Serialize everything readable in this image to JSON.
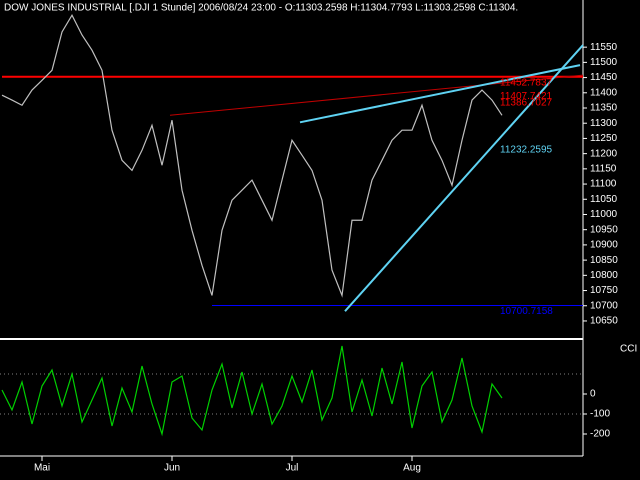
{
  "chart_data": [
    {
      "type": "line",
      "title": "DOW JONES INDUSTRIAL [.DJI  1 Stunde] 2006/08/24 23:00 - O:11303.2598 H:11304.7793 L:11303.2598 C:11304.",
      "categories": [
        null,
        null,
        null,
        null,
        "Mai",
        null,
        null,
        null,
        null,
        null,
        null,
        null,
        null,
        null,
        null,
        null,
        null,
        "Jun",
        null,
        null,
        null,
        null,
        null,
        null,
        null,
        null,
        null,
        null,
        null,
        "Jul",
        null,
        null,
        null,
        null,
        null,
        null,
        null,
        null,
        null,
        null,
        null,
        "Aug",
        null,
        null,
        null,
        null,
        null,
        null,
        null,
        null,
        null
      ],
      "values": [
        11392,
        11376,
        11359,
        11409,
        11441,
        11474,
        11600,
        11655,
        11590,
        11540,
        11474,
        11277,
        11178,
        11145,
        11211,
        11293,
        11162,
        11310,
        11080,
        10948,
        10833,
        10734,
        10948,
        11047,
        11080,
        11113,
        11047,
        10981,
        11113,
        11244,
        11195,
        11145,
        11047,
        10817,
        10734,
        10981,
        10981,
        11113,
        11178,
        11244,
        11277,
        11277,
        11359,
        11244,
        11178,
        11096,
        11244,
        11376,
        11409,
        11376,
        11326
      ],
      "color": "#c0c0c0",
      "ylim": [
        10594,
        11705
      ],
      "yticks": [
        10650,
        10700,
        10750,
        10800,
        10850,
        10900,
        10950,
        11000,
        11050,
        11100,
        11150,
        11200,
        11250,
        11300,
        11350,
        11400,
        11450,
        11500,
        11550
      ],
      "levels": [
        {
          "value": 11452.7837,
          "color": "#ff0000",
          "from": 0
        },
        {
          "value": 10700.7158,
          "color": "#0000ff",
          "from": 21
        }
      ],
      "trendlines": [
        {
          "color": "#c00000",
          "points": [
            [
              16.8,
              11326
            ],
            [
              58.1,
              11458
            ]
          ]
        },
        {
          "color": "#5fd3f3",
          "points": [
            [
              29.8,
              11303
            ],
            [
              57.8,
              11491
            ]
          ]
        },
        {
          "color": "#5fd3f3",
          "points": [
            [
              34.3,
              10682
            ],
            [
              58.1,
              11557
            ]
          ]
        }
      ],
      "price_labels": [
        {
          "value": 11452.7837,
          "color": "#ff0000"
        },
        {
          "value": 11407.7421,
          "color": "#ff0000"
        },
        {
          "value": 11386.7027,
          "color": "#ff0000"
        },
        {
          "value": 11232.2595,
          "color": "#5fd3f3"
        },
        {
          "value": 10700.7158,
          "color": "#0000ff"
        }
      ]
    },
    {
      "type": "line",
      "label": "CCI",
      "values": [
        20,
        -80,
        60,
        -150,
        40,
        120,
        -60,
        100,
        -140,
        -30,
        80,
        -160,
        30,
        -90,
        140,
        -50,
        -200,
        60,
        90,
        -120,
        -180,
        20,
        150,
        -70,
        110,
        -100,
        50,
        -150,
        -60,
        90,
        -40,
        120,
        -130,
        -20,
        240,
        -90,
        70,
        -110,
        130,
        -50,
        160,
        -170,
        40,
        110,
        -140,
        -30,
        180,
        -60,
        -190,
        50,
        -20
      ],
      "color": "#00d000",
      "ylim": [
        -305,
        270
      ],
      "yticks": [
        0,
        -100,
        -200
      ],
      "reference_lines": [
        100,
        -100
      ]
    }
  ]
}
